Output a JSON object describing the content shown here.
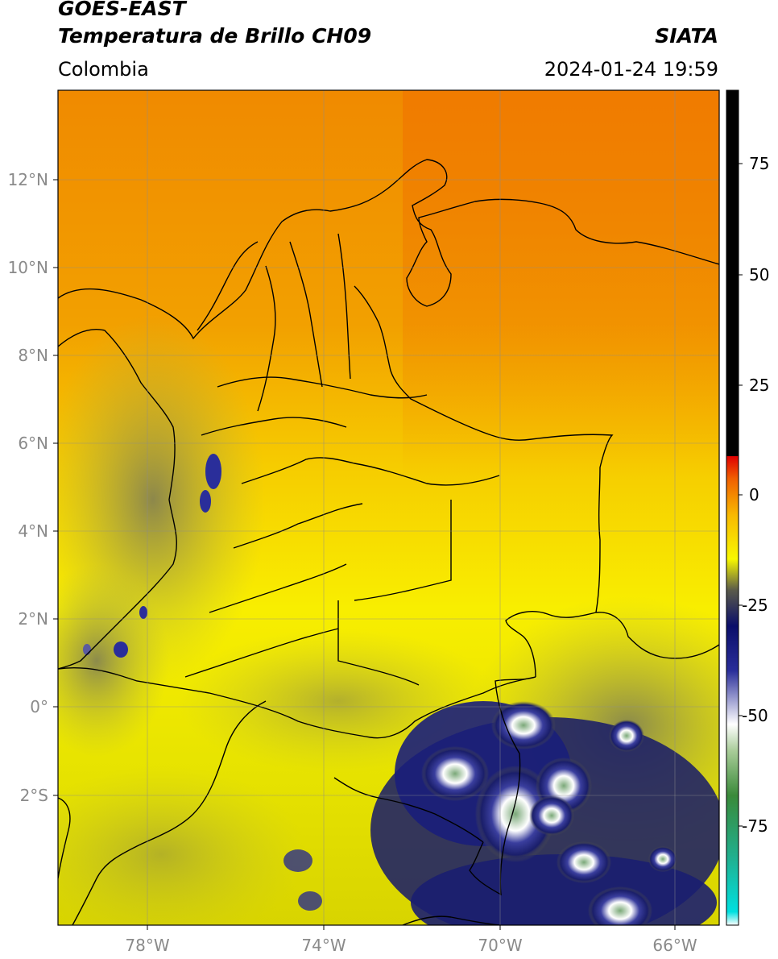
{
  "header": {
    "satellite": "GOES-EAST",
    "product": "Temperatura de Brillo CH09",
    "region": "Colombia",
    "agency": "SIATA",
    "timestamp": "2024-01-24 19:59"
  },
  "axes": {
    "lon_labels": [
      "78°W",
      "74°W",
      "70°W",
      "66°W"
    ],
    "lat_labels": [
      "12°N",
      "10°N",
      "8°N",
      "6°N",
      "4°N",
      "2°N",
      "0°",
      "2°S"
    ]
  },
  "colorbar": {
    "labels": [
      "75",
      "50",
      "25",
      "0",
      "-25",
      "-50",
      "-75"
    ],
    "stops": [
      {
        "value": -97,
        "color": "#ffffff"
      },
      {
        "value": -94,
        "color": "#00e0e0"
      },
      {
        "value": -82,
        "color": "#20b090"
      },
      {
        "value": -68,
        "color": "#3a8a3a"
      },
      {
        "value": -58,
        "color": "#a8cc98"
      },
      {
        "value": -52,
        "color": "#ffffff"
      },
      {
        "value": -40,
        "color": "#2a2e9a"
      },
      {
        "value": -30,
        "color": "#0a0e6a"
      },
      {
        "value": -22,
        "color": "#5a5a4a"
      },
      {
        "value": -15,
        "color": "#f8f800"
      },
      {
        "value": -5,
        "color": "#f8b800"
      },
      {
        "value": 3,
        "color": "#f06000"
      },
      {
        "value": 8,
        "color": "#e00000"
      },
      {
        "value": 8.1,
        "color": "#000000"
      },
      {
        "value": 90,
        "color": "#000000"
      }
    ]
  }
}
